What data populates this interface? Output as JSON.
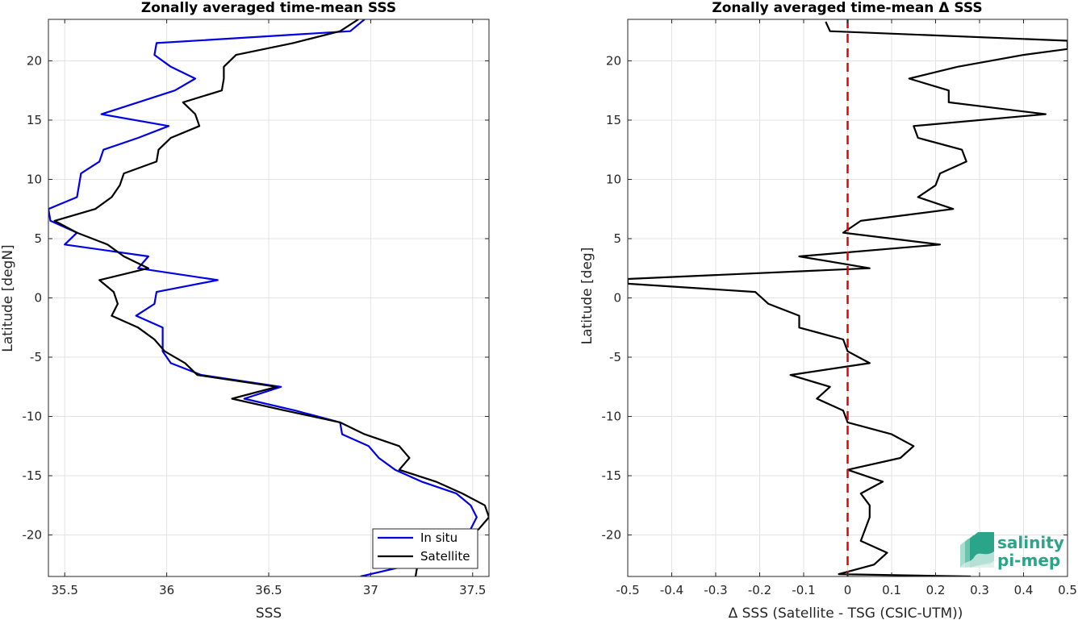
{
  "chart_data": [
    {
      "type": "line",
      "title": "Zonally averaged time-mean SSS",
      "xlabel": "SSS",
      "ylabel": "Latitude [degN]",
      "xlim": [
        35.42,
        37.58
      ],
      "ylim": [
        -23.5,
        23.5
      ],
      "xticks": [
        35.5,
        36,
        36.5,
        37,
        37.5
      ],
      "xticklabels": [
        "35.5",
        "36",
        "36.5",
        "37",
        "37.5"
      ],
      "yticks": [
        -20,
        -15,
        -10,
        -5,
        0,
        5,
        10,
        15,
        20
      ],
      "yticklabels": [
        "-20",
        "-15",
        "-10",
        "-5",
        "0",
        "5",
        "10",
        "15",
        "20"
      ],
      "grid": true,
      "legend_position": "bottom-right",
      "series": [
        {
          "name": "In situ",
          "color": "#0000e6",
          "points": [
            [
              36.97,
              23.5
            ],
            [
              36.9,
              22.5
            ],
            [
              35.95,
              21.5
            ],
            [
              35.94,
              20.5
            ],
            [
              36.02,
              19.5
            ],
            [
              36.14,
              18.5
            ],
            [
              36.04,
              17.5
            ],
            [
              35.86,
              16.5
            ],
            [
              35.68,
              15.5
            ],
            [
              36.01,
              14.5
            ],
            [
              35.86,
              13.5
            ],
            [
              35.69,
              12.5
            ],
            [
              35.67,
              11.5
            ],
            [
              35.58,
              10.5
            ],
            [
              35.57,
              9.5
            ],
            [
              35.56,
              8.5
            ],
            [
              35.42,
              7.5
            ],
            [
              35.43,
              6.5
            ],
            [
              35.56,
              5.5
            ],
            [
              35.5,
              4.5
            ],
            [
              35.91,
              3.5
            ],
            [
              35.86,
              2.5
            ],
            [
              36.25,
              1.5
            ],
            [
              35.95,
              0.5
            ],
            [
              35.94,
              -0.5
            ],
            [
              35.85,
              -1.5
            ],
            [
              35.98,
              -2.5
            ],
            [
              35.98,
              -3.5
            ],
            [
              35.98,
              -4.5
            ],
            [
              36.02,
              -5.5
            ],
            [
              36.17,
              -6.5
            ],
            [
              36.56,
              -7.5
            ],
            [
              36.38,
              -8.5
            ],
            [
              36.63,
              -9.5
            ],
            [
              36.85,
              -10.5
            ],
            [
              36.86,
              -11.5
            ],
            [
              36.99,
              -12.5
            ],
            [
              37.04,
              -13.5
            ],
            [
              37.12,
              -14.5
            ],
            [
              37.25,
              -15.5
            ],
            [
              37.42,
              -16.5
            ],
            [
              37.49,
              -17.5
            ],
            [
              37.52,
              -18.5
            ],
            [
              37.49,
              -19.5
            ],
            [
              37.44,
              -20.5
            ],
            [
              37.38,
              -21.5
            ],
            [
              37.2,
              -22.5
            ],
            [
              36.95,
              -23.5
            ]
          ]
        },
        {
          "name": "Satellite",
          "color": "#000000",
          "points": [
            [
              36.94,
              23.5
            ],
            [
              36.85,
              22.5
            ],
            [
              36.62,
              21.5
            ],
            [
              36.34,
              20.5
            ],
            [
              36.28,
              19.5
            ],
            [
              36.28,
              18.5
            ],
            [
              36.27,
              17.5
            ],
            [
              36.08,
              16.5
            ],
            [
              36.14,
              15.5
            ],
            [
              36.16,
              14.5
            ],
            [
              36.02,
              13.5
            ],
            [
              35.96,
              12.5
            ],
            [
              35.95,
              11.5
            ],
            [
              35.79,
              10.5
            ],
            [
              35.77,
              9.5
            ],
            [
              35.73,
              8.5
            ],
            [
              35.65,
              7.5
            ],
            [
              35.45,
              6.5
            ],
            [
              35.56,
              5.5
            ],
            [
              35.71,
              4.5
            ],
            [
              35.79,
              3.5
            ],
            [
              35.91,
              2.5
            ],
            [
              35.67,
              1.5
            ],
            [
              35.74,
              0.5
            ],
            [
              35.76,
              -0.5
            ],
            [
              35.73,
              -1.5
            ],
            [
              35.86,
              -2.5
            ],
            [
              35.94,
              -3.5
            ],
            [
              35.99,
              -4.5
            ],
            [
              36.09,
              -5.5
            ],
            [
              36.15,
              -6.5
            ],
            [
              36.54,
              -7.5
            ],
            [
              36.32,
              -8.5
            ],
            [
              36.58,
              -9.5
            ],
            [
              36.85,
              -10.5
            ],
            [
              36.97,
              -11.5
            ],
            [
              37.14,
              -12.5
            ],
            [
              37.19,
              -13.5
            ],
            [
              37.14,
              -14.5
            ],
            [
              37.32,
              -15.5
            ],
            [
              37.45,
              -16.5
            ],
            [
              37.56,
              -17.5
            ],
            [
              37.58,
              -18.5
            ],
            [
              37.53,
              -19.5
            ],
            [
              37.46,
              -20.5
            ],
            [
              37.35,
              -21.5
            ],
            [
              37.23,
              -22.5
            ],
            [
              37.22,
              -23.5
            ]
          ]
        }
      ]
    },
    {
      "type": "line",
      "title": "Zonally averaged time-mean Δ SSS",
      "xlabel": "Δ SSS (Satellite - TSG (CSIC-UTM))",
      "ylabel": "Latitude [deg]",
      "xlim": [
        -0.5,
        0.5
      ],
      "ylim": [
        -23.5,
        23.5
      ],
      "xticks": [
        -0.5,
        -0.4,
        -0.3,
        -0.2,
        -0.1,
        0,
        0.1,
        0.2,
        0.3,
        0.4,
        0.5
      ],
      "xticklabels": [
        "-0.5",
        "-0.4",
        "-0.3",
        "-0.2",
        "-0.1",
        "0",
        "0.1",
        "0.2",
        "0.3",
        "0.4",
        "0.5"
      ],
      "yticks": [
        -20,
        -15,
        -10,
        -5,
        0,
        5,
        10,
        15,
        20
      ],
      "yticklabels": [
        "-20",
        "-15",
        "-10",
        "-5",
        "0",
        "5",
        "10",
        "15",
        "20"
      ],
      "grid": true,
      "reference_line": {
        "x": 0,
        "color": "#e60000",
        "style": "dashed"
      },
      "series": [
        {
          "name": "",
          "color": "#000000",
          "points": [
            [
              -0.05,
              23.3
            ],
            [
              -0.04,
              22.5
            ],
            [
              0.5,
              21.7
            ],
            [
              0.5,
              21.0
            ],
            [
              0.4,
              20.5
            ],
            [
              0.25,
              19.5
            ],
            [
              0.14,
              18.5
            ],
            [
              0.23,
              17.5
            ],
            [
              0.23,
              16.5
            ],
            [
              0.45,
              15.5
            ],
            [
              0.15,
              14.5
            ],
            [
              0.16,
              13.5
            ],
            [
              0.26,
              12.5
            ],
            [
              0.27,
              11.5
            ],
            [
              0.21,
              10.5
            ],
            [
              0.2,
              9.5
            ],
            [
              0.16,
              8.5
            ],
            [
              0.24,
              7.5
            ],
            [
              0.03,
              6.5
            ],
            [
              -0.01,
              5.5
            ],
            [
              0.21,
              4.5
            ],
            [
              -0.11,
              3.5
            ],
            [
              0.05,
              2.5
            ],
            [
              -0.5,
              1.6
            ],
            [
              -0.5,
              1.2
            ],
            [
              -0.21,
              0.5
            ],
            [
              -0.18,
              -0.5
            ],
            [
              -0.11,
              -1.5
            ],
            [
              -0.11,
              -2.5
            ],
            [
              -0.01,
              -3.5
            ],
            [
              0,
              -4.5
            ],
            [
              0.05,
              -5.5
            ],
            [
              -0.13,
              -6.5
            ],
            [
              -0.04,
              -7.5
            ],
            [
              -0.07,
              -8.5
            ],
            [
              -0.01,
              -9.5
            ],
            [
              0,
              -10.5
            ],
            [
              0.1,
              -11.5
            ],
            [
              0.15,
              -12.5
            ],
            [
              0.12,
              -13.5
            ],
            [
              0,
              -14.5
            ],
            [
              0.08,
              -15.5
            ],
            [
              0.03,
              -16.5
            ],
            [
              0.05,
              -17.5
            ],
            [
              0.05,
              -18.5
            ],
            [
              0.04,
              -19.5
            ],
            [
              0.03,
              -20.5
            ],
            [
              0.09,
              -21.5
            ],
            [
              0.06,
              -22.5
            ],
            [
              -0.02,
              -23.3
            ],
            [
              0.28,
              -23.5
            ]
          ]
        }
      ]
    }
  ],
  "legend": {
    "in_situ": "In situ",
    "satellite": "Satellite"
  },
  "logo": {
    "line1": "salinity",
    "line2": "pi-mep"
  }
}
